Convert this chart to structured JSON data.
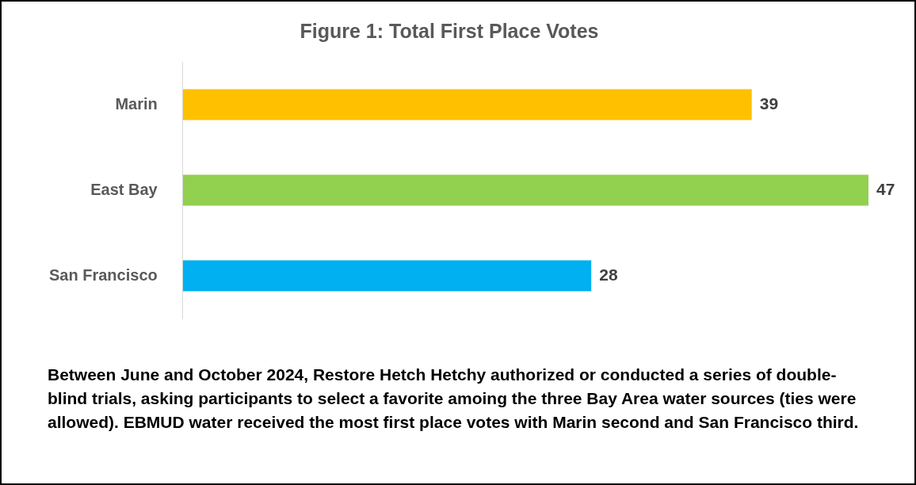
{
  "chart_data": {
    "type": "bar",
    "orientation": "horizontal",
    "title": "Figure 1: Total First Place Votes",
    "categories": [
      "Marin",
      "East Bay",
      "San Francisco"
    ],
    "values": [
      39,
      47,
      28
    ],
    "colors": [
      "#ffc000",
      "#92d050",
      "#00b0f0"
    ],
    "data_labels": true,
    "legend": false,
    "annotations": [
      "Between June and October 2024, Restore Hetch Hetchy authorized or conducted a series of double-blind trials, asking participants to select a favorite amoing the three Bay Area water sources (ties were allowed). EBMUD water received the most first place votes with Marin second and San Francisco third."
    ]
  }
}
